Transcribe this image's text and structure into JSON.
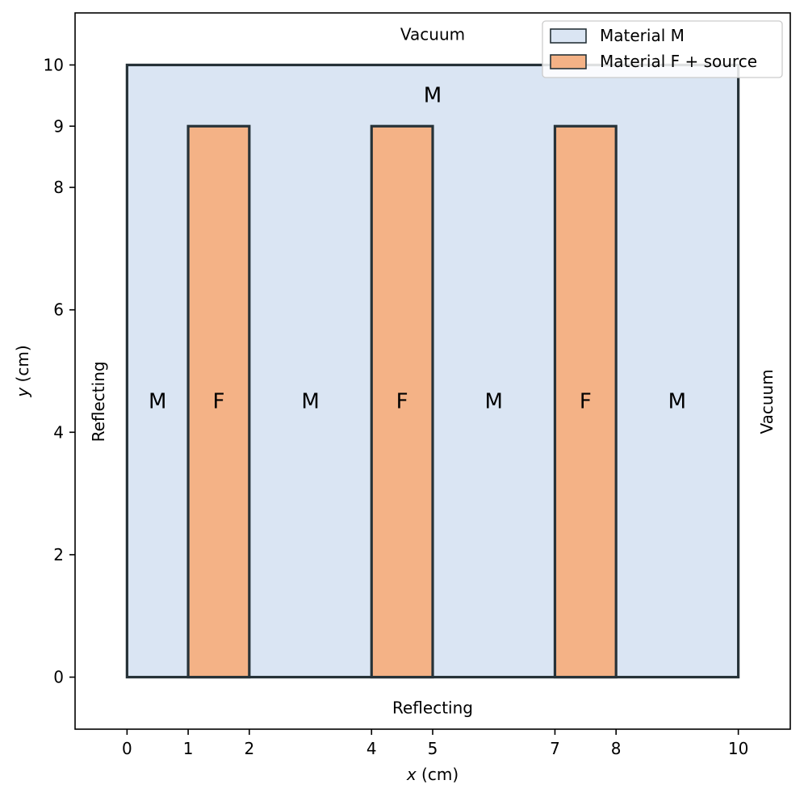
{
  "chart_data": {
    "type": "diagram",
    "title": "",
    "xlabel": {
      "var": "x",
      "unit": " (cm)"
    },
    "ylabel": {
      "var": "y",
      "unit": " (cm)"
    },
    "xlim": [
      -0.85,
      10.85
    ],
    "ylim": [
      -0.85,
      10.85
    ],
    "xticks": [
      0,
      1,
      2,
      4,
      5,
      7,
      8,
      10
    ],
    "yticks": [
      0,
      2,
      4,
      6,
      8,
      9,
      10
    ],
    "domain": {
      "x": [
        0,
        10
      ],
      "y": [
        0,
        10
      ],
      "material": "M"
    },
    "fuel_rods": [
      {
        "x": [
          1,
          2
        ],
        "y": [
          0,
          9
        ],
        "material": "F"
      },
      {
        "x": [
          4,
          5
        ],
        "y": [
          0,
          9
        ],
        "material": "F"
      },
      {
        "x": [
          7,
          8
        ],
        "y": [
          0,
          9
        ],
        "material": "F"
      }
    ],
    "region_labels": [
      {
        "text": "M",
        "x": 0.5,
        "y": 4.5
      },
      {
        "text": "F",
        "x": 1.5,
        "y": 4.5
      },
      {
        "text": "M",
        "x": 3.0,
        "y": 4.5
      },
      {
        "text": "F",
        "x": 4.5,
        "y": 4.5
      },
      {
        "text": "M",
        "x": 6.0,
        "y": 4.5
      },
      {
        "text": "F",
        "x": 7.5,
        "y": 4.5
      },
      {
        "text": "M",
        "x": 9.0,
        "y": 4.5
      },
      {
        "text": "M",
        "x": 5.0,
        "y": 9.5
      }
    ],
    "boundary_conditions": {
      "top": "Vacuum",
      "bottom": "Reflecting",
      "left": "Reflecting",
      "right": "Vacuum"
    },
    "legend": {
      "position": "top-right",
      "entries": [
        {
          "label": "Material M",
          "color": "#dae5f3"
        },
        {
          "label": "Material F + source",
          "color": "#f4b286"
        }
      ]
    },
    "colors": {
      "material_M": "#dae5f3",
      "material_F": "#f4b286",
      "edge": "#263238"
    }
  }
}
